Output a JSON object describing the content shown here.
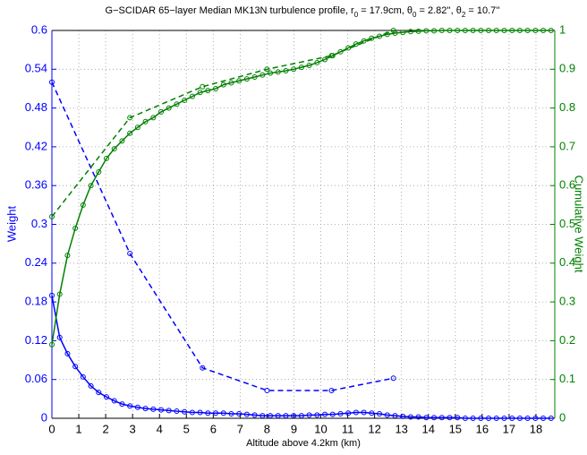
{
  "chart_data": {
    "type": "line",
    "title": [
      "G−SCIDAR 65−layer Median MK13N turbulence profile, r",
      "0",
      " = 17.9cm, θ",
      "0",
      " = 2.82'', θ",
      "2",
      " = 10.7''"
    ],
    "x_label": "Altitude above 4.2km (km)",
    "y_label": "Weight",
    "y2_label": "Cumulative Weight",
    "y_color": "#0000ff",
    "y2_color": "#008000",
    "xlim": [
      0,
      18.7
    ],
    "xticks": [
      0,
      1,
      2,
      3,
      4,
      5,
      6,
      7,
      8,
      9,
      10,
      11,
      12,
      13,
      14,
      15,
      16,
      17,
      18
    ],
    "ylim": [
      0,
      0.6
    ],
    "yticks": [
      0,
      0.06,
      0.12,
      0.18,
      0.24,
      0.3,
      0.36,
      0.42,
      0.48,
      0.54,
      0.6
    ],
    "y2lim": [
      0,
      1
    ],
    "y2ticks": [
      0,
      0.1,
      0.2,
      0.3,
      0.4,
      0.5,
      0.6,
      0.7,
      0.8,
      0.9,
      1
    ],
    "grid": true,
    "series": [
      {
        "color": "#0000ff",
        "dashed": false,
        "x": [
          0,
          0.29,
          0.58,
          0.87,
          1.16,
          1.45,
          1.74,
          2.03,
          2.32,
          2.61,
          2.9,
          3.19,
          3.48,
          3.77,
          4.06,
          4.35,
          4.64,
          4.93,
          5.22,
          5.51,
          5.8,
          6.09,
          6.38,
          6.67,
          6.96,
          7.25,
          7.54,
          7.83,
          8.12,
          8.41,
          8.7,
          8.99,
          9.28,
          9.57,
          9.86,
          10.15,
          10.44,
          10.73,
          11.02,
          11.31,
          11.6,
          11.89,
          12.18,
          12.47,
          12.76,
          13.05,
          13.34,
          13.63,
          13.92,
          14.21,
          14.5,
          14.79,
          15.08,
          15.37,
          15.66,
          15.95,
          16.24,
          16.53,
          16.82,
          17.11,
          17.4,
          17.69,
          17.98,
          18.27,
          18.56
        ],
        "values": [
          0.19,
          0.125,
          0.1,
          0.08,
          0.064,
          0.05,
          0.04,
          0.033,
          0.027,
          0.022,
          0.019,
          0.017,
          0.015,
          0.014,
          0.013,
          0.012,
          0.011,
          0.01,
          0.009,
          0.009,
          0.008,
          0.008,
          0.008,
          0.007,
          0.007,
          0.006,
          0.005,
          0.004,
          0.004,
          0.004,
          0.004,
          0.004,
          0.004,
          0.005,
          0.005,
          0.006,
          0.006,
          0.007,
          0.008,
          0.009,
          0.009,
          0.008,
          0.007,
          0.005,
          0.004,
          0.003,
          0.002,
          0.002,
          0.001,
          0.001,
          0.001,
          0.001,
          0.001,
          0,
          0,
          0,
          0,
          0,
          0,
          0,
          0,
          0,
          0,
          0,
          0
        ]
      },
      {
        "color": "#008000",
        "dashed": false,
        "axis": "y2",
        "x": [
          0,
          0.29,
          0.58,
          0.87,
          1.16,
          1.45,
          1.74,
          2.03,
          2.32,
          2.61,
          2.9,
          3.19,
          3.48,
          3.77,
          4.06,
          4.35,
          4.64,
          4.93,
          5.22,
          5.51,
          5.8,
          6.09,
          6.38,
          6.67,
          6.96,
          7.25,
          7.54,
          7.83,
          8.12,
          8.41,
          8.7,
          8.99,
          9.28,
          9.57,
          9.86,
          10.15,
          10.44,
          10.73,
          11.02,
          11.31,
          11.6,
          11.89,
          12.18,
          12.47,
          12.76,
          13.05,
          13.34,
          13.63,
          13.92,
          14.21,
          14.5,
          14.79,
          15.08,
          15.37,
          15.66,
          15.95,
          16.24,
          16.53,
          16.82,
          17.11,
          17.4,
          17.69,
          17.98,
          18.27,
          18.56
        ],
        "values": [
          0.19,
          0.32,
          0.42,
          0.49,
          0.55,
          0.6,
          0.635,
          0.67,
          0.695,
          0.715,
          0.735,
          0.75,
          0.765,
          0.775,
          0.79,
          0.8,
          0.81,
          0.82,
          0.83,
          0.84,
          0.845,
          0.85,
          0.86,
          0.865,
          0.87,
          0.875,
          0.88,
          0.885,
          0.89,
          0.893,
          0.896,
          0.9,
          0.905,
          0.91,
          0.917,
          0.925,
          0.935,
          0.945,
          0.955,
          0.965,
          0.973,
          0.98,
          0.985,
          0.99,
          0.993,
          0.995,
          0.997,
          0.998,
          0.999,
          0.999,
          1,
          1,
          1,
          1,
          1,
          1,
          1,
          1,
          1,
          1,
          1,
          1,
          1,
          1,
          1
        ]
      },
      {
        "color": "#0000ff",
        "dashed": true,
        "x": [
          0,
          2.9,
          5.6,
          8.0,
          10.4,
          12.7
        ],
        "values": [
          0.52,
          0.255,
          0.078,
          0.043,
          0.043,
          0.062
        ]
      },
      {
        "color": "#008000",
        "dashed": true,
        "axis": "y2",
        "x": [
          0,
          2.9,
          5.6,
          8.0,
          10.4,
          12.7
        ],
        "values": [
          0.52,
          0.775,
          0.855,
          0.9,
          0.935,
          1
        ]
      }
    ]
  }
}
